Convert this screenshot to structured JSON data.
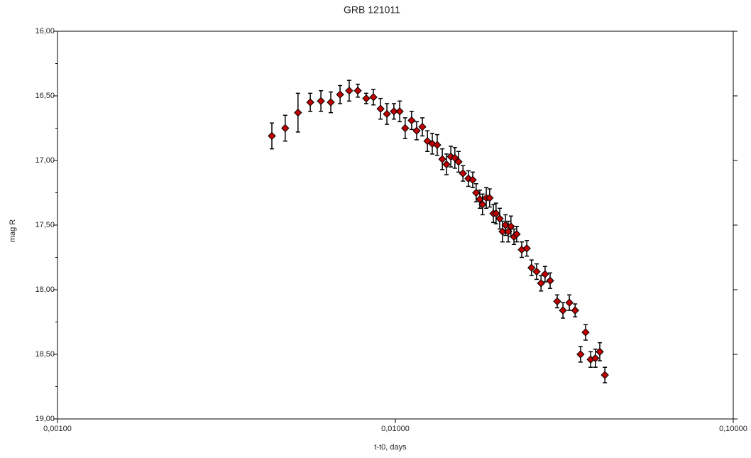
{
  "chart_data": {
    "type": "scatter",
    "title": "GRB 121011",
    "x_label": "t-t0, days",
    "y_label": "mag R",
    "x_log": true,
    "color": "#c00000",
    "xlim": [
      0.001,
      0.1
    ],
    "xticks": [
      {
        "value": 0.001,
        "label": "0,00100"
      },
      {
        "value": 0.01,
        "label": "0,01000"
      },
      {
        "value": 0.1,
        "label": "0,10000"
      }
    ],
    "ylim": [
      19,
      16
    ],
    "yticks": [
      {
        "value": 16,
        "label": "16,00"
      },
      {
        "value": 16.5,
        "label": "16,50"
      },
      {
        "value": 17,
        "label": "17,00"
      },
      {
        "value": 17.5,
        "label": "17,50"
      },
      {
        "value": 18,
        "label": "18,00"
      },
      {
        "value": 18.5,
        "label": "18,50"
      },
      {
        "value": 19,
        "label": "19,00"
      }
    ],
    "yminorticks": [
      16.25,
      16.75,
      17.25,
      17.75,
      18.25,
      18.75
    ],
    "x": [
      0.00431,
      0.00472,
      0.00515,
      0.0056,
      0.00602,
      0.00644,
      0.00686,
      0.0073,
      0.00774,
      0.0082,
      0.00861,
      0.00904,
      0.00944,
      0.0099,
      0.0103,
      0.01069,
      0.01117,
      0.01156,
      0.01202,
      0.01244,
      0.01286,
      0.0133,
      0.01377,
      0.01417,
      0.01459,
      0.015,
      0.01538,
      0.01585,
      0.01645,
      0.01694,
      0.01734,
      0.01778,
      0.01811,
      0.01858,
      0.01901,
      0.0195,
      0.01986,
      0.02036,
      0.02075,
      0.02118,
      0.02158,
      0.02198,
      0.02244,
      0.02286,
      0.02366,
      0.02449,
      0.02529,
      0.02618,
      0.02698,
      0.02773,
      0.02871,
      0.03013,
      0.03133,
      0.03273,
      0.03404,
      0.03532,
      0.03656,
      0.03784,
      0.03908,
      0.04027,
      0.04169
    ],
    "values": [
      16.81,
      16.75,
      16.63,
      16.55,
      16.54,
      16.55,
      16.49,
      16.46,
      16.46,
      16.52,
      16.51,
      16.6,
      16.64,
      16.62,
      16.62,
      16.75,
      16.69,
      16.77,
      16.74,
      16.85,
      16.87,
      16.88,
      16.99,
      17.03,
      16.97,
      16.98,
      17.01,
      17.1,
      17.14,
      17.15,
      17.25,
      17.3,
      17.34,
      17.29,
      17.29,
      17.41,
      17.41,
      17.45,
      17.55,
      17.5,
      17.55,
      17.51,
      17.59,
      17.57,
      17.69,
      17.68,
      17.83,
      17.86,
      17.95,
      17.88,
      17.93,
      18.09,
      18.16,
      18.1,
      18.16,
      18.5,
      18.33,
      18.54,
      18.53,
      18.48,
      18.66
    ],
    "errors": [
      0.1,
      0.1,
      0.15,
      0.07,
      0.08,
      0.08,
      0.07,
      0.08,
      0.05,
      0.04,
      0.06,
      0.08,
      0.08,
      0.06,
      0.08,
      0.08,
      0.07,
      0.07,
      0.07,
      0.08,
      0.08,
      0.08,
      0.08,
      0.08,
      0.08,
      0.08,
      0.08,
      0.06,
      0.06,
      0.06,
      0.07,
      0.07,
      0.08,
      0.08,
      0.07,
      0.07,
      0.08,
      0.08,
      0.08,
      0.08,
      0.08,
      0.08,
      0.06,
      0.06,
      0.06,
      0.06,
      0.06,
      0.06,
      0.06,
      0.06,
      0.06,
      0.05,
      0.06,
      0.06,
      0.05,
      0.06,
      0.06,
      0.06,
      0.07,
      0.07,
      0.06
    ]
  }
}
